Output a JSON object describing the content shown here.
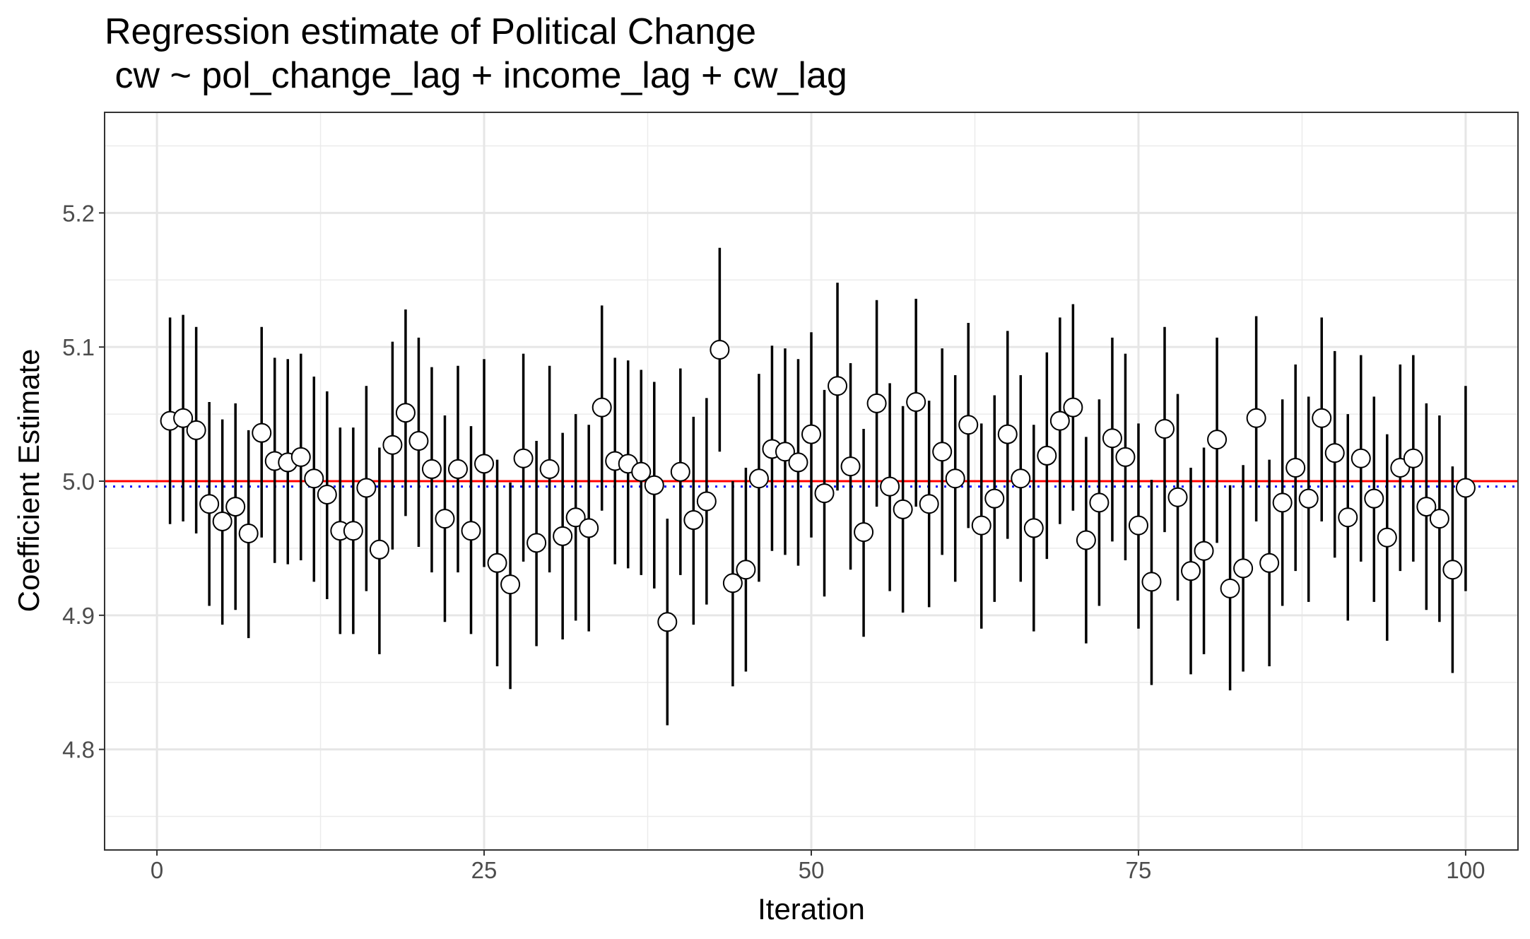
{
  "chart_data": {
    "type": "scatter",
    "title": "Regression estimate of Political Change",
    "subtitle": " cw ~ pol_change_lag + income_lag + cw_lag",
    "xlabel": "Iteration",
    "ylabel": "Coefficient Estimate",
    "xlim": [
      -4,
      104
    ],
    "ylim": [
      4.725,
      5.275
    ],
    "xticks": [
      0,
      25,
      50,
      75,
      100
    ],
    "xtick_labels": [
      "0",
      "25",
      "50",
      "75",
      "100"
    ],
    "yticks": [
      4.8,
      4.9,
      5.0,
      5.1,
      5.2
    ],
    "ytick_labels": [
      "4.8",
      "4.9",
      "5.0",
      "5.1",
      "5.2"
    ],
    "grid": true,
    "reference_lines": [
      {
        "y": 5.0,
        "color": "#ff0000",
        "style": "solid"
      },
      {
        "y": 4.996,
        "color": "#0000ff",
        "style": "dotted"
      }
    ],
    "series": [
      {
        "x": [
          1,
          2,
          3,
          4,
          5,
          6,
          7,
          8,
          9,
          10,
          11,
          12,
          13,
          14,
          15,
          16,
          17,
          18,
          19,
          20,
          21,
          22,
          23,
          24,
          25,
          26,
          27,
          28,
          29,
          30,
          31,
          32,
          33,
          34,
          35,
          36,
          37,
          38,
          39,
          40,
          41,
          42,
          43,
          44,
          45,
          46,
          47,
          48,
          49,
          50,
          51,
          52,
          53,
          54,
          55,
          56,
          57,
          58,
          59,
          60,
          61,
          62,
          63,
          64,
          65,
          66,
          67,
          68,
          69,
          70,
          71,
          72,
          73,
          74,
          75,
          76,
          77,
          78,
          79,
          80,
          81,
          82,
          83,
          84,
          85,
          86,
          87,
          88,
          89,
          90,
          91,
          92,
          93,
          94,
          95,
          96,
          97,
          98,
          99,
          100
        ],
        "y": [
          5.045,
          5.047,
          5.038,
          4.983,
          4.97,
          4.981,
          4.961,
          5.036,
          5.015,
          5.014,
          5.018,
          5.002,
          4.99,
          4.963,
          4.963,
          4.995,
          4.949,
          5.027,
          5.051,
          5.03,
          5.009,
          4.972,
          5.009,
          4.963,
          5.013,
          4.939,
          4.923,
          5.017,
          4.954,
          5.009,
          4.959,
          4.973,
          4.965,
          5.055,
          5.015,
          5.013,
          5.007,
          4.997,
          4.895,
          5.007,
          4.971,
          4.985,
          5.098,
          4.924,
          4.934,
          5.002,
          5.024,
          5.022,
          5.014,
          5.035,
          4.991,
          5.071,
          5.011,
          4.962,
          5.058,
          4.996,
          4.979,
          5.059,
          4.983,
          5.022,
          5.002,
          5.042,
          4.967,
          4.987,
          5.035,
          5.002,
          4.965,
          5.019,
          5.045,
          5.055,
          4.956,
          4.984,
          5.032,
          5.018,
          4.967,
          4.925,
          5.039,
          4.988,
          4.933,
          4.948,
          5.031,
          4.92,
          4.935,
          5.047,
          4.939,
          4.984,
          5.01,
          4.987,
          5.047,
          5.021,
          4.973,
          5.017,
          4.987,
          4.958,
          5.01,
          5.017,
          4.981,
          4.972,
          4.934,
          4.995
        ],
        "ymin": [
          4.968,
          4.97,
          4.961,
          4.907,
          4.893,
          4.904,
          4.883,
          4.958,
          4.939,
          4.938,
          4.941,
          4.925,
          4.912,
          4.886,
          4.886,
          4.918,
          4.871,
          4.949,
          4.974,
          4.951,
          4.932,
          4.895,
          4.932,
          4.886,
          4.936,
          4.862,
          4.845,
          4.94,
          4.877,
          4.932,
          4.882,
          4.896,
          4.888,
          4.978,
          4.938,
          4.935,
          4.93,
          4.92,
          4.818,
          4.93,
          4.893,
          4.908,
          5.022,
          4.847,
          4.858,
          4.925,
          4.948,
          4.945,
          4.937,
          4.958,
          4.914,
          4.993,
          4.934,
          4.884,
          4.981,
          4.918,
          4.902,
          4.981,
          4.906,
          4.945,
          4.925,
          4.965,
          4.89,
          4.91,
          4.957,
          4.925,
          4.888,
          4.942,
          4.968,
          4.978,
          4.879,
          4.907,
          4.955,
          4.941,
          4.89,
          4.848,
          4.962,
          4.911,
          4.856,
          4.871,
          4.954,
          4.844,
          4.858,
          4.97,
          4.862,
          4.907,
          4.933,
          4.91,
          4.97,
          4.943,
          4.896,
          4.94,
          4.91,
          4.881,
          4.933,
          4.94,
          4.904,
          4.895,
          4.857,
          4.918
        ],
        "ymax": [
          5.122,
          5.124,
          5.115,
          5.059,
          5.046,
          5.058,
          5.038,
          5.115,
          5.092,
          5.091,
          5.095,
          5.078,
          5.067,
          5.04,
          5.04,
          5.071,
          5.025,
          5.104,
          5.128,
          5.107,
          5.085,
          5.049,
          5.086,
          5.041,
          5.091,
          5.016,
          4.999,
          5.095,
          5.03,
          5.086,
          5.036,
          5.05,
          5.042,
          5.131,
          5.092,
          5.09,
          5.083,
          5.074,
          4.972,
          5.084,
          5.048,
          5.062,
          5.174,
          5.0,
          5.01,
          5.08,
          5.101,
          5.099,
          5.091,
          5.111,
          5.068,
          5.148,
          5.088,
          5.039,
          5.135,
          5.073,
          5.056,
          5.136,
          5.06,
          5.099,
          5.079,
          5.118,
          5.043,
          5.064,
          5.112,
          5.079,
          5.042,
          5.096,
          5.122,
          5.132,
          5.033,
          5.061,
          5.107,
          5.095,
          5.043,
          5.001,
          5.115,
          5.065,
          5.01,
          5.025,
          5.107,
          4.997,
          5.012,
          5.123,
          5.016,
          5.061,
          5.087,
          5.063,
          5.122,
          5.097,
          5.05,
          5.094,
          5.063,
          5.035,
          5.087,
          5.094,
          5.058,
          5.049,
          5.011,
          5.071
        ]
      }
    ]
  }
}
